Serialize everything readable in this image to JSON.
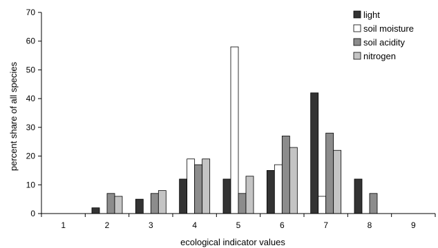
{
  "chart_data": {
    "type": "bar",
    "title": "",
    "xlabel": "ecological indicator values",
    "ylabel": "percent  share of all species",
    "categories": [
      "1",
      "2",
      "3",
      "4",
      "5",
      "6",
      "7",
      "8",
      "9"
    ],
    "ylim": [
      0,
      70
    ],
    "yticks": [
      0,
      10,
      20,
      30,
      40,
      50,
      60,
      70
    ],
    "grid": false,
    "legend_position": "top-right",
    "series": [
      {
        "name": "light",
        "color": "#333333",
        "values": [
          0,
          2,
          5,
          12,
          12,
          15,
          42,
          12,
          0
        ]
      },
      {
        "name": "soil moisture",
        "color": "#ffffff",
        "values": [
          0,
          0,
          0,
          19,
          58,
          17,
          6,
          0,
          0
        ]
      },
      {
        "name": "soil acidity",
        "color": "#8c8c8c",
        "values": [
          0,
          7,
          7,
          17,
          7,
          27,
          28,
          7,
          0
        ]
      },
      {
        "name": "nitrogen",
        "color": "#c4c4c4",
        "values": [
          0,
          6,
          8,
          19,
          13,
          23,
          22,
          0,
          0
        ]
      }
    ]
  }
}
